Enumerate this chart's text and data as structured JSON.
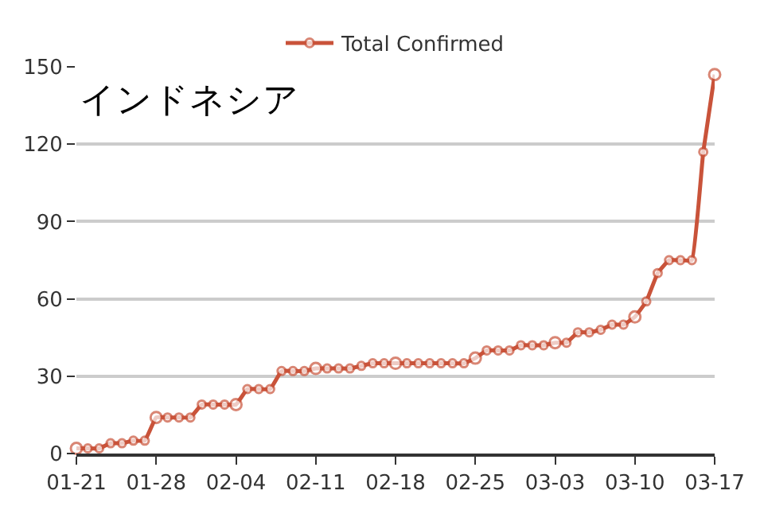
{
  "chart_data": {
    "type": "line",
    "title": "インドネシア",
    "x": [
      "--01-21",
      "--01-22",
      "--01-23",
      "--01-24",
      "--01-25",
      "--01-26",
      "--01-27",
      "--01-28",
      "--01-29",
      "--01-30",
      "--01-31",
      "--02-01",
      "--02-02",
      "--02-03",
      "--02-04",
      "--02-05",
      "--02-06",
      "--02-07",
      "--02-08",
      "--02-09",
      "--02-10",
      "--02-11",
      "--02-12",
      "--02-13",
      "--02-14",
      "--02-15",
      "--02-16",
      "--02-17",
      "--02-18",
      "--02-19",
      "--02-20",
      "--02-21",
      "--02-22",
      "--02-23",
      "--02-24",
      "--02-25",
      "--02-26",
      "--02-27",
      "--02-28",
      "--02-29",
      "--03-01",
      "--03-02",
      "--03-03",
      "--03-04",
      "--03-05",
      "--03-06",
      "--03-07",
      "--03-08",
      "--03-09",
      "--03-10",
      "--03-11",
      "--03-12",
      "--03-13",
      "--03-14",
      "--03-15",
      "--03-16",
      "--03-17"
    ],
    "series": [
      {
        "name": "Total Confirmed",
        "color": "#c9533a",
        "values": [
          2,
          2,
          2,
          4,
          4,
          5,
          5,
          14,
          14,
          14,
          14,
          19,
          19,
          19,
          19,
          25,
          25,
          25,
          32,
          32,
          32,
          33,
          33,
          33,
          33,
          34,
          35,
          35,
          35,
          35,
          35,
          35,
          35,
          35,
          35,
          37,
          40,
          40,
          40,
          42,
          42,
          42,
          43,
          43,
          47,
          47,
          48,
          50,
          50,
          53,
          59,
          70,
          75,
          75,
          75,
          117,
          147
        ]
      }
    ],
    "xlim": [
      "--01-21",
      "--03-17"
    ],
    "xticks": [
      {
        "value": "--01-21",
        "label": "01-21"
      },
      {
        "value": "--01-28",
        "label": "01-28"
      },
      {
        "value": "--02-04",
        "label": "02-04"
      },
      {
        "value": "--02-11",
        "label": "02-11"
      },
      {
        "value": "--02-18",
        "label": "02-18"
      },
      {
        "value": "--02-25",
        "label": "02-25"
      },
      {
        "value": "--03-03",
        "label": "03-03"
      },
      {
        "value": "--03-10",
        "label": "03-10"
      },
      {
        "value": "--03-17",
        "label": "03-17"
      }
    ],
    "ylim": [
      0,
      150
    ],
    "yticks": [
      0,
      30,
      60,
      90,
      120,
      150
    ],
    "grid": "y",
    "legend": "top",
    "marker": "circle",
    "line_style": "solid"
  }
}
